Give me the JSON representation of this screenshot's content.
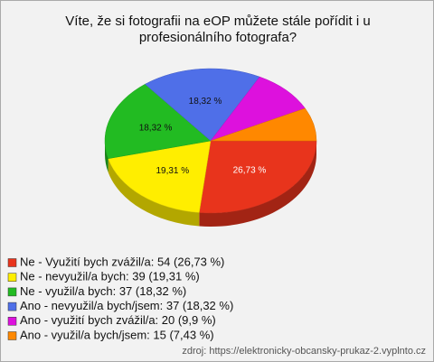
{
  "chart_data": {
    "type": "pie",
    "title": "Víte, že si fotografii na eOP můžete stále pořídit i u profesionálního fotografa?",
    "categories": [
      "Ne - Využití bych zvážil/a: 54 (26,73 %)",
      "Ne - nevyužil/a bych: 39 (19,31 %)",
      "Ne - využil/a bych: 37 (18,32 %)",
      "Ano - nevyužil/a bych/jsem: 37 (18,32 %)",
      "Ano - využití bych zvážil/a: 20 (9,9 %)",
      "Ano - využil/a bych/jsem: 15 (7,43 %)"
    ],
    "values": [
      26.73,
      19.31,
      18.32,
      18.32,
      9.9,
      7.43
    ],
    "value_labels": [
      "26,73 %",
      "19,31 %",
      "18,32 %",
      "18,32 %",
      null,
      null
    ],
    "colors": [
      "#e8341c",
      "#ffee00",
      "#22bb22",
      "#4f6fe8",
      "#dd11dd",
      "#ff8800"
    ],
    "source": "zdroj: https://elektronicky-obcansky-prukaz-2.vyplnto.cz"
  }
}
